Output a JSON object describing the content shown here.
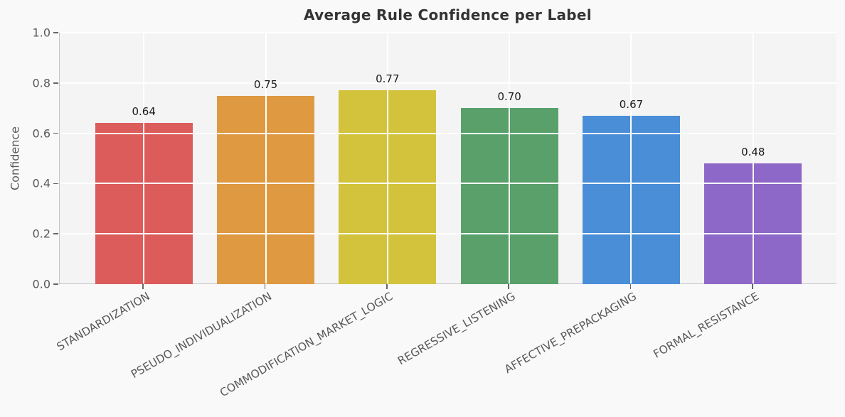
{
  "figure": {
    "background_color": "#f9f9fa",
    "plot_background_color": "#f4f4f5",
    "grid_color": "#ffffff",
    "spine_color": "#c6c6c8",
    "tick_mark_color": "#666666",
    "tick_label_color": "#595959",
    "title_color": "#333333",
    "value_label_color": "#1a1a1a"
  },
  "chart_data": {
    "type": "bar",
    "title": "Average Rule Confidence per Label",
    "xlabel": "",
    "ylabel": "Confidence",
    "categories": [
      "STANDARDIZATION",
      "PSEUDO_INDIVIDUALIZATION",
      "COMMODIFICATION_MARKET_LOGIC",
      "REGRESSIVE_LISTENING",
      "AFFECTIVE_PREPACKAGING",
      "FORMAL_RESISTANCE"
    ],
    "values": [
      0.64,
      0.75,
      0.77,
      0.7,
      0.67,
      0.48
    ],
    "value_labels": [
      "0.64",
      "0.75",
      "0.77",
      "0.70",
      "0.67",
      "0.48"
    ],
    "bar_colors": [
      "#dc5c5c",
      "#de9941",
      "#d3c33c",
      "#59a06b",
      "#4a8ed8",
      "#8d68c8"
    ],
    "ylim": [
      0.0,
      1.0
    ],
    "yticks": [
      0.0,
      0.2,
      0.4,
      0.6,
      0.8,
      1.0
    ],
    "ytick_labels": [
      "0.0",
      "0.2",
      "0.4",
      "0.6",
      "0.8",
      "1.0"
    ],
    "grid": true,
    "grid_on_top_of_bars": true,
    "legend": false,
    "xtick_rotation_deg": 30
  }
}
